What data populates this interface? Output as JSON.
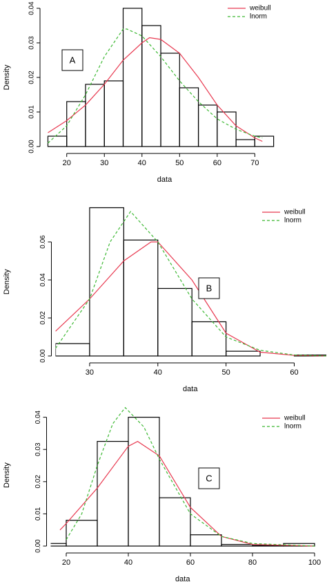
{
  "chart_data": [
    {
      "type": "histogram",
      "annotation": "A",
      "xlabel": "data",
      "ylabel": "Density",
      "legend": "top-right",
      "hist_color": "#000000",
      "bins": [
        15,
        20,
        25,
        30,
        35,
        40,
        45,
        50,
        55,
        60,
        65,
        70,
        75
      ],
      "values": [
        0.003,
        0.013,
        0.018,
        0.019,
        0.04,
        0.035,
        0.027,
        0.017,
        0.012,
        0.01,
        0.002,
        0.003
      ],
      "series": [
        {
          "name": "weibull",
          "color": "#e8384f",
          "dash": false,
          "x": [
            15,
            20,
            25,
            30,
            35,
            40,
            42,
            45,
            50,
            55,
            60,
            65,
            70,
            72
          ],
          "values": [
            0.004,
            0.0075,
            0.012,
            0.018,
            0.025,
            0.03,
            0.0315,
            0.031,
            0.027,
            0.02,
            0.012,
            0.006,
            0.0025,
            0.0015
          ]
        },
        {
          "name": "lnorm",
          "color": "#3cb832",
          "dash": true,
          "x": [
            15,
            20,
            25,
            30,
            35,
            36,
            40,
            45,
            50,
            55,
            60,
            65,
            70,
            72
          ],
          "values": [
            0.001,
            0.006,
            0.015,
            0.026,
            0.034,
            0.034,
            0.032,
            0.026,
            0.019,
            0.013,
            0.008,
            0.005,
            0.003,
            0.0025
          ]
        }
      ],
      "xlim": [
        14,
        78
      ],
      "xticks": [
        20,
        30,
        40,
        50,
        60,
        70
      ],
      "ylim": [
        0,
        0.04
      ],
      "yticks": [
        {
          "value": 0,
          "label": "0.00"
        },
        0.01,
        0.02,
        0.03,
        0.04
      ]
    },
    {
      "type": "histogram",
      "annotation": "B",
      "xlabel": "data",
      "ylabel": "Density",
      "legend": "top-right",
      "hist_color": "#000000",
      "bins": [
        25,
        30,
        35,
        40,
        45,
        50,
        55,
        60,
        65
      ],
      "values": [
        0.0065,
        0.078,
        0.061,
        0.0355,
        0.018,
        0.0025,
        0,
        0.0005
      ],
      "series": [
        {
          "name": "weibull",
          "color": "#e8384f",
          "dash": false,
          "x": [
            25,
            30,
            35,
            39,
            40,
            45,
            50,
            55,
            60,
            65
          ],
          "values": [
            0.013,
            0.03,
            0.05,
            0.06,
            0.06,
            0.04,
            0.012,
            0.002,
            0.0003,
            0
          ]
        },
        {
          "name": "lnorm",
          "color": "#3cb832",
          "dash": true,
          "x": [
            25,
            30,
            33,
            36,
            40,
            45,
            50,
            55,
            60,
            65
          ],
          "values": [
            0.004,
            0.03,
            0.06,
            0.076,
            0.06,
            0.03,
            0.01,
            0.003,
            0.0005,
            0
          ]
        }
      ],
      "xlim": [
        25,
        64.5
      ],
      "xticks": [
        30,
        40,
        50,
        60
      ],
      "ylim": [
        0,
        0.078
      ],
      "yticks": [
        {
          "value": 0,
          "label": "0.00"
        },
        0.02,
        0.04,
        0.06
      ]
    },
    {
      "type": "histogram",
      "annotation": "C",
      "xlabel": "data",
      "ylabel": "Density",
      "legend": "top-right",
      "hist_color": "#000000",
      "bins": [
        10,
        20,
        30,
        40,
        50,
        60,
        70,
        80,
        90,
        100
      ],
      "values": [
        0.0008,
        0.008,
        0.0325,
        0.04,
        0.015,
        0.0035,
        0.0005,
        0.0002,
        0.0008
      ],
      "series": [
        {
          "name": "weibull",
          "color": "#e8384f",
          "dash": false,
          "x": [
            18,
            20,
            30,
            40,
            43,
            50,
            60,
            70,
            80,
            100
          ],
          "values": [
            0.005,
            0.007,
            0.018,
            0.031,
            0.0325,
            0.028,
            0.012,
            0.003,
            0.0005,
            0
          ]
        },
        {
          "name": "lnorm",
          "color": "#3cb832",
          "dash": true,
          "x": [
            20,
            25,
            30,
            35,
            39,
            45,
            50,
            60,
            70,
            80,
            100
          ],
          "values": [
            0.002,
            0.01,
            0.025,
            0.038,
            0.043,
            0.037,
            0.027,
            0.01,
            0.003,
            0.0008,
            0
          ]
        }
      ],
      "xlim": [
        15,
        100
      ],
      "xticks": [
        20,
        40,
        60,
        80,
        100
      ],
      "ylim": [
        0,
        0.044
      ],
      "yticks": [
        {
          "value": 0,
          "label": "0.00"
        },
        0.01,
        0.02,
        0.03,
        0.04
      ]
    }
  ]
}
